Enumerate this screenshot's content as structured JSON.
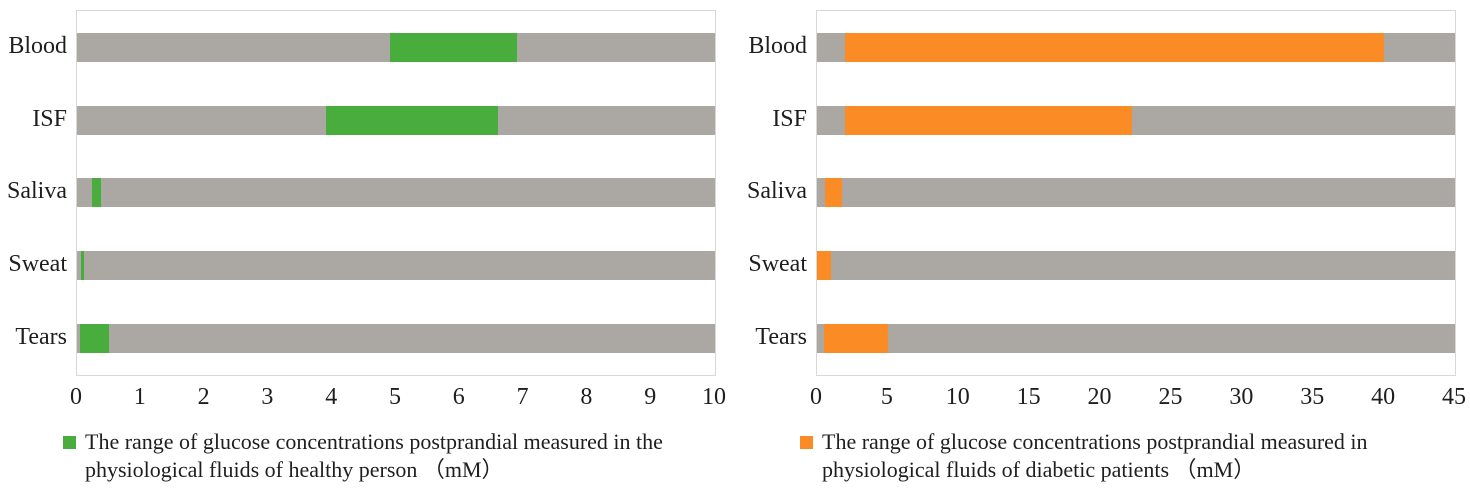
{
  "figure_note": "Two horizontal range charts comparing glucose concentration ranges in physiological fluids",
  "colors": {
    "healthy_green": "#48ad3d",
    "diabetic_orange": "#fa8b25",
    "track_gray": "#aba7a2",
    "plot_border": "#d8d8d8",
    "text": "#1e1e1e"
  },
  "chart_data": [
    {
      "type": "bar",
      "orientation": "horizontal",
      "title": "",
      "categories": [
        "Blood",
        "ISF",
        "Saliva",
        "Sweat",
        "Tears"
      ],
      "ranges_mM": [
        [
          4.9,
          6.9
        ],
        [
          3.9,
          6.6
        ],
        [
          0.23,
          0.38
        ],
        [
          0.06,
          0.11
        ],
        [
          0.05,
          0.5
        ]
      ],
      "xlim": [
        0,
        10
      ],
      "xticks": [
        "0",
        "1",
        "2",
        "3",
        "4",
        "5",
        "6",
        "7",
        "8",
        "9",
        "10"
      ],
      "grid": false,
      "legend_position": "bottom-left",
      "bar_color": "#48ad3d",
      "track_color": "#aba7a2",
      "series_name": "The range of glucose concentrations postprandial measured in the physiological fluids of healthy person （mM）",
      "legend_lines": [
        "The range of glucose concentrations postprandial measured in the",
        "physiological fluids of healthy person （mM）"
      ]
    },
    {
      "type": "bar",
      "orientation": "horizontal",
      "title": "",
      "categories": [
        "Blood",
        "ISF",
        "Saliva",
        "Sweat",
        "Tears"
      ],
      "ranges_mM": [
        [
          2,
          40
        ],
        [
          1.99,
          22.2
        ],
        [
          0.55,
          1.77
        ],
        [
          0.01,
          1
        ],
        [
          0.5,
          5
        ]
      ],
      "xlim": [
        0,
        45
      ],
      "xticks": [
        "0",
        "5",
        "10",
        "15",
        "20",
        "25",
        "30",
        "35",
        "40",
        "45"
      ],
      "grid": false,
      "legend_position": "bottom-left",
      "bar_color": "#fa8b25",
      "track_color": "#aba7a2",
      "series_name": "The range of glucose concentrations postprandial measured in physiological fluids of diabetic patients （mM）",
      "legend_lines": [
        "The range of glucose concentrations postprandial measured in",
        "physiological fluids of diabetic patients （mM）"
      ]
    }
  ]
}
